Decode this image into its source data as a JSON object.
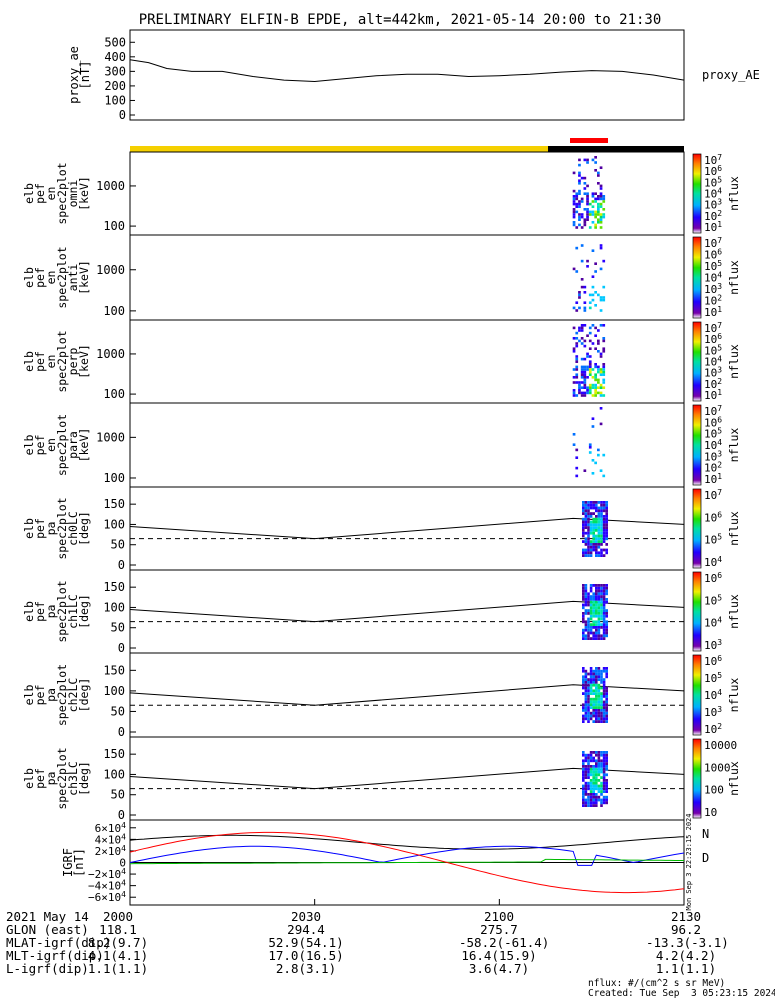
{
  "title": "PRELIMINARY ELFIN-B EPDE, alt=442km, 2021-05-14 20:00 to 21:30",
  "colors": {
    "sci_zone": "#ff0000",
    "bar_day": "#f5d000",
    "bar_night": "#000000",
    "bx": "#000000",
    "by": "#0000ff",
    "bz": "#00bb00",
    "bmag": "#ff0000"
  },
  "chart_data": [
    {
      "type": "line",
      "panel": "proxy_ae",
      "ylabel": [
        "proxy_ae",
        "[nT]"
      ],
      "legend": "proxy_AE",
      "ylim": [
        0,
        550
      ],
      "yticks": [
        "500",
        "400",
        "300",
        "200",
        "100",
        "0"
      ],
      "x": [
        20.0,
        20.05,
        20.1,
        20.167,
        20.25,
        20.333,
        20.417,
        20.5,
        20.583,
        20.667,
        20.75,
        20.833,
        20.917,
        21.0,
        21.083,
        21.167,
        21.25,
        21.333,
        21.417,
        21.5
      ],
      "values": [
        380,
        360,
        320,
        300,
        300,
        265,
        240,
        230,
        250,
        270,
        280,
        280,
        265,
        270,
        280,
        295,
        305,
        300,
        275,
        240
      ]
    },
    {
      "type": "heatmap",
      "panel": "omni",
      "ylabel": [
        "elb",
        "pef",
        "en",
        "spec2plot",
        "omni",
        "[keV]"
      ],
      "yscale": "log",
      "ylim": [
        60,
        7000
      ],
      "yticks": [
        "1000",
        "100"
      ],
      "cbar": [
        "10^7",
        "10^6",
        "10^5",
        "10^4",
        "10^3",
        "10^2",
        "10^1"
      ],
      "cbar_label": "nflux",
      "fill": 0.9
    },
    {
      "type": "heatmap",
      "panel": "anti",
      "ylabel": [
        "elb",
        "pef",
        "en",
        "spec2plot",
        "anti",
        "[keV]"
      ],
      "yscale": "log",
      "ylim": [
        60,
        7000
      ],
      "yticks": [
        "1000",
        "100"
      ],
      "cbar": [
        "10^7",
        "10^6",
        "10^5",
        "10^4",
        "10^3",
        "10^2",
        "10^1"
      ],
      "cbar_label": "nflux",
      "fill": 0.25
    },
    {
      "type": "heatmap",
      "panel": "perp",
      "ylabel": [
        "elb",
        "pef",
        "en",
        "spec2plot",
        "perp",
        "[keV]"
      ],
      "yscale": "log",
      "ylim": [
        60,
        7000
      ],
      "yticks": [
        "1000",
        "100"
      ],
      "cbar": [
        "10^7",
        "10^6",
        "10^5",
        "10^4",
        "10^3",
        "10^2",
        "10^1"
      ],
      "cbar_label": "nflux",
      "fill": 1.0
    },
    {
      "type": "heatmap",
      "panel": "para",
      "ylabel": [
        "elb",
        "pef",
        "en",
        "spec2plot",
        "para",
        "[keV]"
      ],
      "yscale": "log",
      "ylim": [
        60,
        7000
      ],
      "yticks": [
        "1000",
        "100"
      ],
      "cbar": [
        "10^7",
        "10^6",
        "10^5",
        "10^4",
        "10^3",
        "10^2",
        "10^1"
      ],
      "cbar_label": "nflux",
      "fill": 0.2
    },
    {
      "type": "heatmap",
      "panel": "ch0LC",
      "ylabel": [
        "elb",
        "pef",
        "pa",
        "spec2plot",
        "ch0LC",
        "[deg]"
      ],
      "ylim": [
        0,
        180
      ],
      "yticks": [
        "150",
        "100",
        "50",
        "0"
      ],
      "cbar": [
        "10^7",
        "10^6",
        "10^5",
        "10^4"
      ],
      "cbar_label": "nflux",
      "lc_dashed": 65,
      "lc_solid": [
        95,
        65,
        115,
        100
      ]
    },
    {
      "type": "heatmap",
      "panel": "ch1LC",
      "ylabel": [
        "elb",
        "pef",
        "pa",
        "spec2plot",
        "ch1LC",
        "[deg]"
      ],
      "ylim": [
        0,
        180
      ],
      "yticks": [
        "150",
        "100",
        "50",
        "0"
      ],
      "cbar": [
        "10^6",
        "10^5",
        "10^4",
        "10^3"
      ],
      "cbar_label": "nflux",
      "lc_dashed": 65,
      "lc_solid": [
        95,
        65,
        115,
        100
      ]
    },
    {
      "type": "heatmap",
      "panel": "ch2LC",
      "ylabel": [
        "elb",
        "pef",
        "pa",
        "spec2plot",
        "ch2LC",
        "[deg]"
      ],
      "ylim": [
        0,
        180
      ],
      "yticks": [
        "150",
        "100",
        "50",
        "0"
      ],
      "cbar": [
        "10^6",
        "10^5",
        "10^4",
        "10^3",
        "10^2"
      ],
      "cbar_label": "nflux",
      "lc_dashed": 65,
      "lc_solid": [
        95,
        65,
        115,
        100
      ]
    },
    {
      "type": "heatmap",
      "panel": "ch3LC",
      "ylabel": [
        "elb",
        "pef",
        "pa",
        "spec2plot",
        "ch3LC",
        "[deg]"
      ],
      "ylim": [
        0,
        180
      ],
      "yticks": [
        "150",
        "100",
        "50",
        "0"
      ],
      "cbar": [
        "10000",
        "1000",
        "100",
        "10"
      ],
      "cbar_label": "nflux",
      "lc_dashed": 65,
      "lc_solid": [
        95,
        65,
        115,
        100
      ]
    },
    {
      "type": "line",
      "panel": "IGRF",
      "ylabel": [
        "IGRF",
        "[nT]"
      ],
      "ylim": [
        -70000,
        70000
      ],
      "yticks": [
        "6×10^4",
        "4×10^4",
        "2×10^4",
        "0",
        "−2×10^4",
        "−4×10^4",
        "−6×10^4"
      ],
      "legend_N": "N",
      "legend_D": "D",
      "side_note": "Mon Sep  3 22:23:15 2024"
    }
  ],
  "xaxis": {
    "ticks": [
      "2000",
      "2030",
      "2100",
      "2130"
    ]
  },
  "footer": {
    "rows": [
      {
        "label": "2021 May 14",
        "v": [
          "2000",
          "2030",
          "2100",
          "2130"
        ]
      },
      {
        "label": "GLON (east)",
        "v": [
          "118.1",
          "294.4",
          "275.7",
          "96.2"
        ]
      },
      {
        "label": "MLAT-igrf(dip)",
        "v": [
          "8.2(9.7)",
          "52.9(54.1)",
          "-58.2(-61.4)",
          "-13.3(-3.1)"
        ]
      },
      {
        "label": "MLT-igrf(dip)",
        "v": [
          "4.1(4.1)",
          "17.0(16.5)",
          "16.4(15.9)",
          "4.2(4.2)"
        ]
      },
      {
        "label": "L-igrf(dip)",
        "v": [
          "1.1(1.1)",
          "2.8(3.1)",
          "3.6(4.7)",
          "1.1(1.1)"
        ]
      }
    ],
    "note1": "nflux: #/(cm^2 s sr MeV)",
    "note2": "Created: Tue Sep  3 05:23:15 2024"
  }
}
